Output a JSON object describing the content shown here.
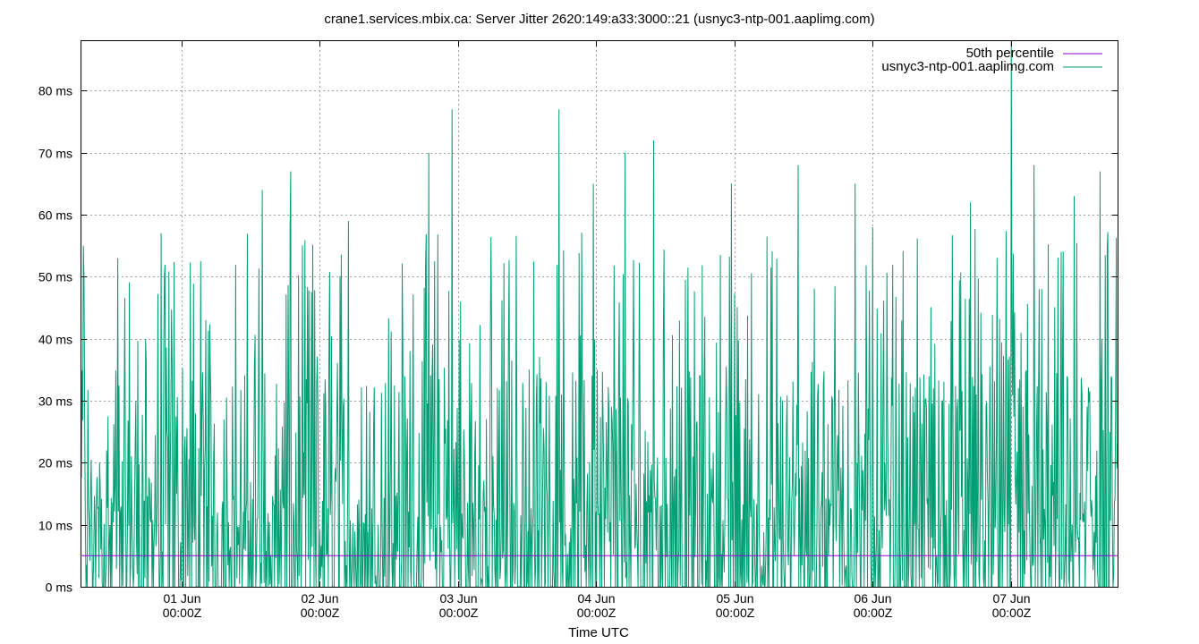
{
  "chart_data": {
    "type": "line",
    "title": "crane1.services.mbix.ca: Server Jitter 2620:149:a33:3000::21 (usnyc3-ntp-001.aaplimg.com)",
    "xlabel": "Time UTC",
    "ylabel": "",
    "ylim": [
      0,
      88
    ],
    "xlim": [
      "2024-05-31T06:40Z",
      "2024-06-07T18:30Z"
    ],
    "grid": true,
    "legend_position": "top-right",
    "y_ticks": [
      {
        "value": 0,
        "label": "0 ms"
      },
      {
        "value": 10,
        "label": "10 ms"
      },
      {
        "value": 20,
        "label": "20 ms"
      },
      {
        "value": 30,
        "label": "30 ms"
      },
      {
        "value": 40,
        "label": "40 ms"
      },
      {
        "value": 50,
        "label": "50 ms"
      },
      {
        "value": 60,
        "label": "60 ms"
      },
      {
        "value": 70,
        "label": "70 ms"
      },
      {
        "value": 80,
        "label": "80 ms"
      }
    ],
    "x_ticks": [
      {
        "value": "2024-06-01T00:00Z",
        "label1": "01 Jun",
        "label2": "00:00Z"
      },
      {
        "value": "2024-06-02T00:00Z",
        "label1": "02 Jun",
        "label2": "00:00Z"
      },
      {
        "value": "2024-06-03T00:00Z",
        "label1": "03 Jun",
        "label2": "00:00Z"
      },
      {
        "value": "2024-06-04T00:00Z",
        "label1": "04 Jun",
        "label2": "00:00Z"
      },
      {
        "value": "2024-06-05T00:00Z",
        "label1": "05 Jun",
        "label2": "00:00Z"
      },
      {
        "value": "2024-06-06T00:00Z",
        "label1": "06 Jun",
        "label2": "00:00Z"
      },
      {
        "value": "2024-06-07T00:00Z",
        "label1": "07 Jun",
        "label2": "00:00Z"
      }
    ],
    "series": [
      {
        "name": "50th percentile",
        "color": "#9400d3",
        "kind": "constant",
        "value": 5.0
      },
      {
        "name": "usnyc3-ntp-001.aaplimg.com",
        "color": "#009e73",
        "kind": "jitter",
        "sample_count": 1600,
        "typical_range": [
          0,
          60
        ],
        "peaks": [
          {
            "x": "2024-05-31T07:00Z",
            "y": 55
          },
          {
            "x": "2024-05-31T13:00Z",
            "y": 53
          },
          {
            "x": "2024-05-31T20:30Z",
            "y": 57
          },
          {
            "x": "2024-06-01T14:00Z",
            "y": 64
          },
          {
            "x": "2024-06-01T19:00Z",
            "y": 67
          },
          {
            "x": "2024-06-02T05:00Z",
            "y": 59
          },
          {
            "x": "2024-06-02T19:00Z",
            "y": 70
          },
          {
            "x": "2024-06-02T23:00Z",
            "y": 77
          },
          {
            "x": "2024-06-03T17:30Z",
            "y": 77
          },
          {
            "x": "2024-06-03T23:30Z",
            "y": 65
          },
          {
            "x": "2024-06-04T05:00Z",
            "y": 70
          },
          {
            "x": "2024-06-04T10:00Z",
            "y": 72
          },
          {
            "x": "2024-06-04T23:30Z",
            "y": 65
          },
          {
            "x": "2024-06-05T11:00Z",
            "y": 68
          },
          {
            "x": "2024-06-05T21:00Z",
            "y": 65
          },
          {
            "x": "2024-06-06T00:00Z",
            "y": 58
          },
          {
            "x": "2024-06-06T17:00Z",
            "y": 62
          },
          {
            "x": "2024-06-07T00:00Z",
            "y": 88
          },
          {
            "x": "2024-06-07T04:00Z",
            "y": 68
          },
          {
            "x": "2024-06-07T11:00Z",
            "y": 63
          },
          {
            "x": "2024-06-07T15:30Z",
            "y": 67
          }
        ]
      }
    ]
  }
}
